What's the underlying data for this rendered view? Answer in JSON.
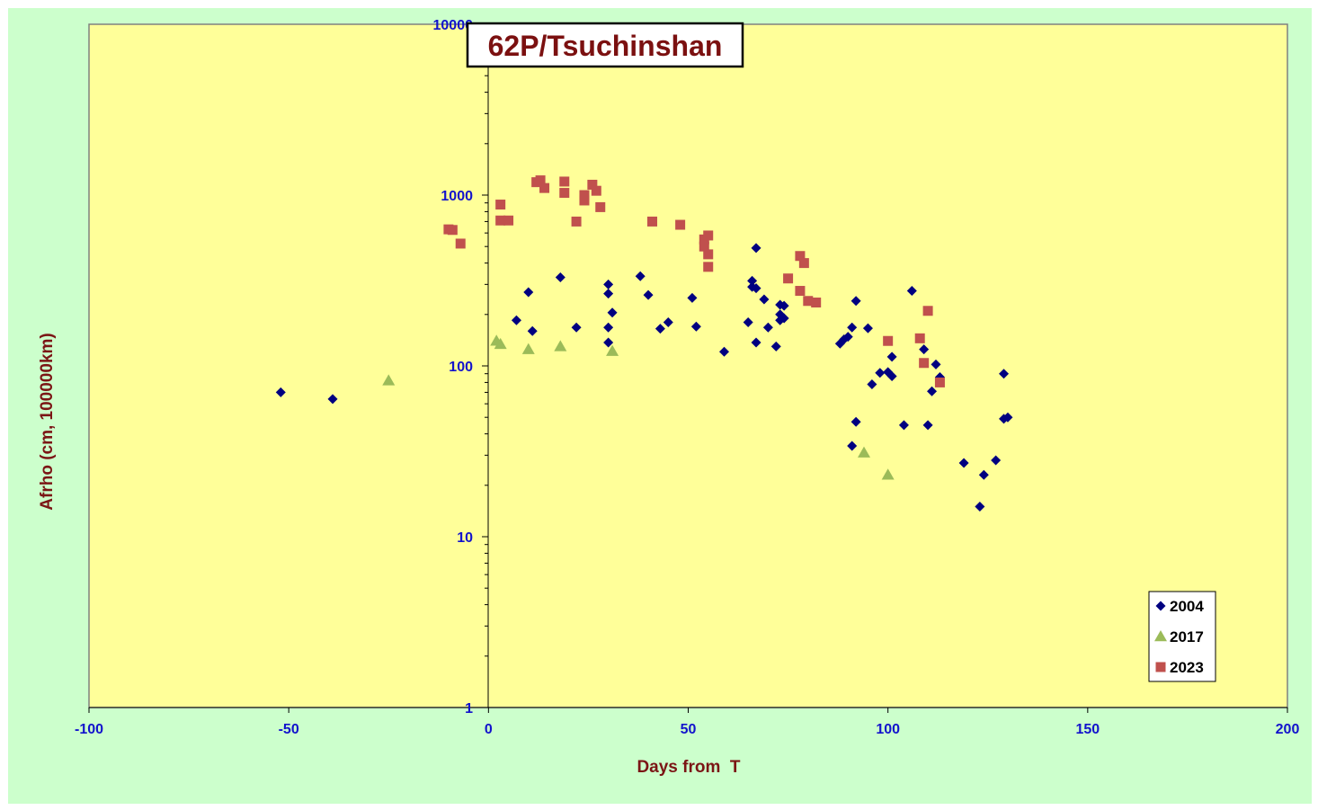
{
  "chart_data": {
    "type": "scatter",
    "title": "62P/Tsuchinshan",
    "xlabel": "Days from  T",
    "ylabel": "Afrho (cm, 100000km)",
    "xlim": [
      -100,
      200
    ],
    "ylim": [
      1,
      10000
    ],
    "yscale": "log",
    "x_ticks": [
      "-100",
      "-50",
      "0",
      "50",
      "100",
      "150",
      "200"
    ],
    "y_ticks": [
      "1",
      "10",
      "100",
      "1000",
      "10000"
    ],
    "grid": false,
    "legend_position": "bottom-right",
    "colors": {
      "chart_bg": "#ccffcc",
      "plot_bg": "#ffff99",
      "axis_text": "#1212cc",
      "title_text": "#7b1010"
    },
    "series": [
      {
        "name": "2004",
        "marker": "diamond",
        "color": "#000080",
        "points": [
          [
            -52,
            70
          ],
          [
            -39,
            64
          ],
          [
            7,
            185
          ],
          [
            10,
            270
          ],
          [
            11,
            160
          ],
          [
            18,
            330
          ],
          [
            22,
            168
          ],
          [
            30,
            300
          ],
          [
            30,
            265
          ],
          [
            30,
            168
          ],
          [
            30,
            137
          ],
          [
            31,
            205
          ],
          [
            38,
            335
          ],
          [
            40,
            260
          ],
          [
            43,
            165
          ],
          [
            45,
            180
          ],
          [
            51,
            250
          ],
          [
            52,
            170
          ],
          [
            59,
            121
          ],
          [
            65,
            180
          ],
          [
            66,
            315
          ],
          [
            66,
            290
          ],
          [
            67,
            285
          ],
          [
            67,
            490
          ],
          [
            67,
            137
          ],
          [
            69,
            245
          ],
          [
            70,
            168
          ],
          [
            72,
            130
          ],
          [
            73,
            228
          ],
          [
            73,
            200
          ],
          [
            73,
            185
          ],
          [
            74,
            225
          ],
          [
            74,
            190
          ],
          [
            88,
            135
          ],
          [
            89,
            143
          ],
          [
            90,
            148
          ],
          [
            91,
            168
          ],
          [
            91,
            34
          ],
          [
            92,
            240
          ],
          [
            92,
            47
          ],
          [
            95,
            166
          ],
          [
            96,
            78
          ],
          [
            98,
            91
          ],
          [
            100,
            92
          ],
          [
            101,
            113
          ],
          [
            101,
            87
          ],
          [
            104,
            45
          ],
          [
            106,
            275
          ],
          [
            109,
            125
          ],
          [
            110,
            45
          ],
          [
            111,
            71
          ],
          [
            112,
            102
          ],
          [
            113,
            86
          ],
          [
            119,
            27
          ],
          [
            123,
            15
          ],
          [
            124,
            23
          ],
          [
            127,
            28
          ],
          [
            129,
            90
          ],
          [
            129,
            49
          ],
          [
            130,
            50
          ]
        ]
      },
      {
        "name": "2017",
        "marker": "triangle",
        "color": "#9bbb59",
        "points": [
          [
            -25,
            82
          ],
          [
            2,
            140
          ],
          [
            3,
            134
          ],
          [
            10,
            125
          ],
          [
            18,
            130
          ],
          [
            31,
            122
          ],
          [
            94,
            31
          ],
          [
            100,
            23
          ]
        ]
      },
      {
        "name": "2023",
        "marker": "square",
        "color": "#c0504d",
        "points": [
          [
            -10,
            630
          ],
          [
            -9,
            625
          ],
          [
            -7,
            520
          ],
          [
            3,
            880
          ],
          [
            3,
            710
          ],
          [
            5,
            710
          ],
          [
            12,
            1190
          ],
          [
            13,
            1220
          ],
          [
            14,
            1100
          ],
          [
            19,
            1200
          ],
          [
            19,
            1030
          ],
          [
            22,
            700
          ],
          [
            24,
            930
          ],
          [
            24,
            1000
          ],
          [
            26,
            1150
          ],
          [
            27,
            1060
          ],
          [
            28,
            850
          ],
          [
            41,
            700
          ],
          [
            48,
            670
          ],
          [
            54,
            550
          ],
          [
            54,
            500
          ],
          [
            55,
            580
          ],
          [
            55,
            450
          ],
          [
            55,
            380
          ],
          [
            75,
            325
          ],
          [
            78,
            440
          ],
          [
            78,
            275
          ],
          [
            79,
            400
          ],
          [
            80,
            240
          ],
          [
            82,
            235
          ],
          [
            100,
            140
          ],
          [
            108,
            145
          ],
          [
            109,
            104
          ],
          [
            110,
            210
          ],
          [
            113,
            80
          ]
        ]
      }
    ]
  }
}
